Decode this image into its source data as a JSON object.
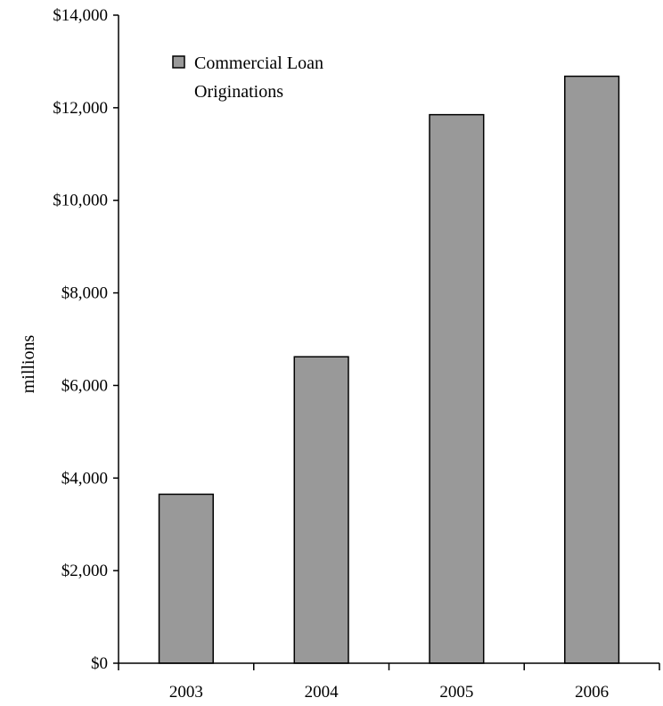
{
  "chart_data": {
    "type": "bar",
    "categories": [
      "2003",
      "2004",
      "2005",
      "2006"
    ],
    "series": [
      {
        "name": "Commercial Loan Originations",
        "values": [
          3650,
          6620,
          11850,
          12680
        ]
      }
    ],
    "title": "",
    "xlabel": "",
    "ylabel": "millions",
    "ylim": [
      0,
      14000
    ],
    "yticks": [
      0,
      2000,
      4000,
      6000,
      8000,
      10000,
      12000,
      14000
    ],
    "ytick_labels": [
      "$0",
      "$2,000",
      "$4,000",
      "$6,000",
      "$8,000",
      "$10,000",
      "$12,000",
      "$14,000"
    ],
    "legend": {
      "placement": "top-left",
      "lines": [
        "Commercial Loan",
        "Originations"
      ]
    },
    "grid": false,
    "colors": {
      "bar": "#999999",
      "axis": "#000000"
    }
  }
}
